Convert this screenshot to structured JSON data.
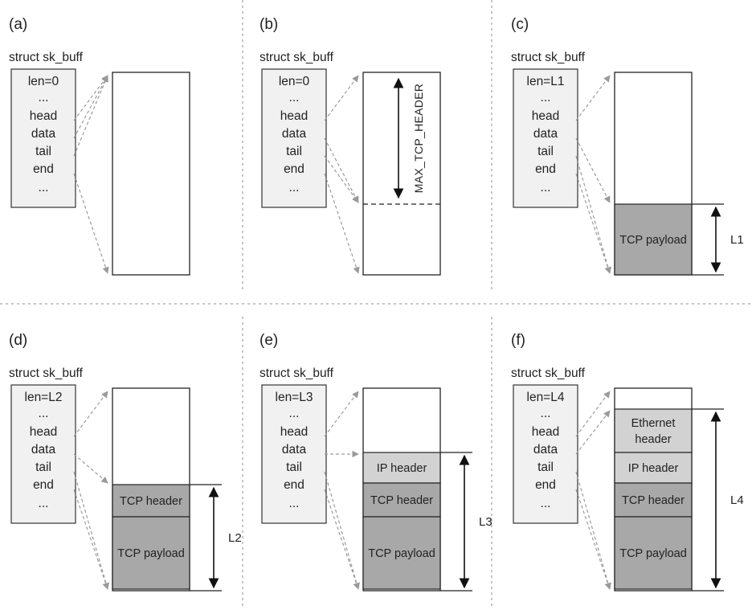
{
  "struct_name": "struct sk_buff",
  "field_names": [
    "...",
    "head",
    "data",
    "tail",
    "end",
    "..."
  ],
  "max_label": "MAX_TCP_HEADER",
  "colors": {
    "dark": "#a8a8a8",
    "light": "#d2d2d2",
    "white": "#ffffff",
    "struct_fill": "#f1f1f1",
    "line": "#222222",
    "arrow": "#9a9a9a"
  },
  "panels": [
    {
      "id": "a",
      "label": "(a)",
      "len_field": "len=0",
      "segments": [],
      "measure_label": ""
    },
    {
      "id": "b",
      "label": "(b)",
      "len_field": "len=0",
      "segments": [],
      "measure_label": ""
    },
    {
      "id": "c",
      "label": "(c)",
      "len_field": "len=L1",
      "segments": [
        {
          "label": "TCP payload",
          "shade": "dark"
        }
      ],
      "measure_label": "L1"
    },
    {
      "id": "d",
      "label": "(d)",
      "len_field": "len=L2",
      "segments": [
        {
          "label": "TCP header",
          "shade": "dark"
        },
        {
          "label": "TCP payload",
          "shade": "dark"
        }
      ],
      "measure_label": "L2"
    },
    {
      "id": "e",
      "label": "(e)",
      "len_field": "len=L3",
      "segments": [
        {
          "label": "IP header",
          "shade": "light"
        },
        {
          "label": "TCP header",
          "shade": "dark"
        },
        {
          "label": "TCP payload",
          "shade": "dark"
        }
      ],
      "measure_label": "L3"
    },
    {
      "id": "f",
      "label": "(f)",
      "len_field": "len=L4",
      "segments": [
        {
          "label": "Ethernet header",
          "shade": "light"
        },
        {
          "label": "IP header",
          "shade": "light"
        },
        {
          "label": "TCP header",
          "shade": "dark"
        },
        {
          "label": "TCP payload",
          "shade": "dark"
        }
      ],
      "measure_label": "L4"
    }
  ]
}
